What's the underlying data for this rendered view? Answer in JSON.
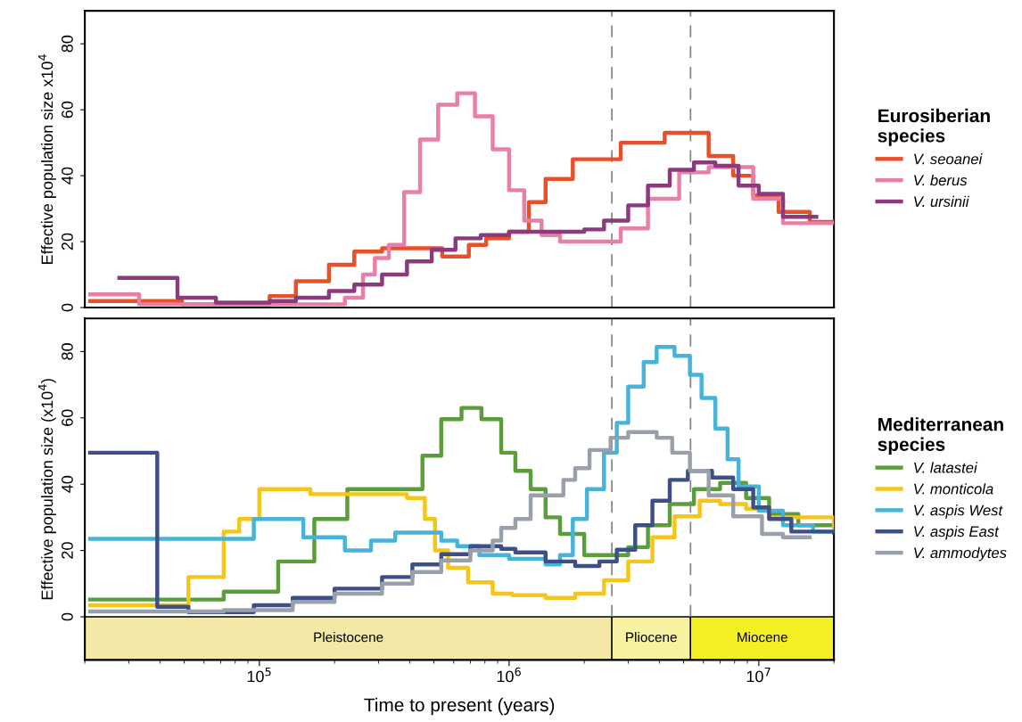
{
  "chart_data": [
    {
      "type": "step",
      "ylabel": "Effective population size x10$^{4}$",
      "legend_title": "Eurosiberian species",
      "legend": "right",
      "tick_labels": "y",
      "log": "x",
      "xlim": [
        20000,
        20000000
      ],
      "ylim": [
        0,
        90
      ],
      "yticks": [
        0,
        20,
        40,
        60,
        80
      ],
      "ref_lines": [
        {
          "axis": "x",
          "value": 2580000,
          "label": null,
          "color": "#808080",
          "line_style": "dashed"
        },
        {
          "axis": "x",
          "value": 5330000,
          "label": null,
          "color": "#808080",
          "line_style": "dashed"
        }
      ],
      "series": [
        {
          "name": "V. seoanei",
          "color": "#e8502a",
          "x": [
            21000,
            49000,
            110000,
            140000,
            190000,
            240000,
            310000,
            390000,
            540000,
            690000,
            810000,
            1000000,
            1200000,
            1400000,
            1800000,
            2800000,
            4200000,
            5200000,
            6300000,
            7900000,
            9500000,
            12000000,
            16000000,
            20000000
          ],
          "values": [
            2,
            1,
            3.5,
            8,
            13,
            17,
            18,
            18,
            15.5,
            19,
            21,
            23,
            32,
            39,
            45,
            50,
            53,
            53,
            46,
            40,
            34,
            29,
            26,
            26
          ]
        },
        {
          "name": "V. berus",
          "color": "#e87fa8",
          "x": [
            21000,
            33000,
            220000,
            260000,
            290000,
            330000,
            380000,
            440000,
            520000,
            620000,
            730000,
            860000,
            1000000,
            1150000,
            1350000,
            1600000,
            2000000,
            2800000,
            3600000,
            4800000,
            6300000,
            9500000,
            12500000,
            20000000
          ],
          "values": [
            4,
            1,
            3,
            10,
            15,
            19,
            35,
            51,
            61.5,
            65,
            58,
            48,
            35.6,
            26.4,
            22,
            20,
            20,
            24,
            33,
            41,
            42.6,
            33,
            25.6,
            25.6
          ]
        },
        {
          "name": "V. ursinii",
          "color": "#8b3a7e",
          "x": [
            27500,
            47000,
            67000,
            110000,
            140000,
            190000,
            240000,
            310000,
            390000,
            490000,
            610000,
            770000,
            1000000,
            2000000,
            2400000,
            3000000,
            3600000,
            4400000,
            5500000,
            6700000,
            8300000,
            10000000,
            12500000,
            17000000
          ],
          "values": [
            9,
            3,
            1.5,
            2,
            3,
            5,
            7,
            10,
            14,
            17.5,
            21,
            22,
            23,
            23.7,
            26.4,
            31,
            37,
            41.8,
            44,
            43,
            37,
            34.5,
            27.5,
            27.5
          ]
        }
      ]
    },
    {
      "type": "step",
      "ylabel": "Effective population size (x10$^{4}$)",
      "xlabel": "Time to present (years)",
      "legend_title": "Mediterranean species",
      "legend": "right",
      "log": "x",
      "xlim": [
        20000,
        20000000
      ],
      "ylim": [
        -13,
        90
      ],
      "yticks": [
        0,
        20,
        40,
        60,
        80
      ],
      "xticks": [
        {
          "value": 100000,
          "label": "10$^{5}$"
        },
        {
          "value": 1000000,
          "label": "10$^{6}$"
        },
        {
          "value": 10000000,
          "label": "10$^{7}$"
        }
      ],
      "ref_lines": [
        {
          "axis": "x",
          "value": 2580000,
          "label": null,
          "color": "#808080",
          "line_style": "dashed"
        },
        {
          "axis": "x",
          "value": 5330000,
          "label": null,
          "color": "#808080",
          "line_style": "dashed"
        }
      ],
      "bands": [
        {
          "axis": "x",
          "from": 20000,
          "to": 2580000,
          "label": "Pleistocene",
          "color": "#f3e8a6"
        },
        {
          "axis": "x",
          "from": 2580000,
          "to": 5330000,
          "label": "Pliocene",
          "color": "#f6f2a0"
        },
        {
          "axis": "x",
          "from": 5330000,
          "to": 20000000,
          "label": "Miocene",
          "color": "#f4f024"
        }
      ],
      "series": [
        {
          "name": "V. latastei",
          "color": "#5a9e3a",
          "x": [
            21000,
            72000,
            119000,
            166000,
            225000,
            450000,
            535000,
            645000,
            775000,
            930000,
            1060000,
            1220000,
            1400000,
            1600000,
            2000000,
            3000000,
            3600000,
            4400000,
            5500000,
            7000000,
            8900000,
            11000000,
            14400000,
            20000000
          ],
          "values": [
            5.2,
            7.6,
            16.7,
            29.5,
            38.5,
            48.6,
            59.6,
            63,
            59.6,
            49.5,
            44,
            38.5,
            30,
            25,
            18.6,
            21,
            27.6,
            34,
            38.5,
            40.4,
            35.8,
            31,
            27.6,
            25.7
          ]
        },
        {
          "name": "V. monticola",
          "color": "#f5c518",
          "x": [
            21000,
            52000,
            72000,
            83000,
            100000,
            160000,
            390000,
            460000,
            505000,
            570000,
            685000,
            860000,
            1030000,
            1400000,
            1840000,
            2400000,
            3000000,
            3750000,
            4600000,
            5800000,
            7000000,
            8900000,
            11000000,
            20000000
          ],
          "values": [
            3.5,
            12,
            25.7,
            29.5,
            38.5,
            37,
            35.8,
            29.5,
            20,
            14.8,
            10.4,
            7,
            6.5,
            5.7,
            7,
            11,
            16.7,
            24,
            30.3,
            35,
            34,
            32.5,
            30,
            26
          ]
        },
        {
          "name": "V. aspis West",
          "color": "#45b4d8",
          "x": [
            21000,
            95000,
            150000,
            220000,
            280000,
            350000,
            535000,
            620000,
            760000,
            1000000,
            1400000,
            1600000,
            1800000,
            2050000,
            2400000,
            2700000,
            3000000,
            3460000,
            3900000,
            4600000,
            5300000,
            5900000,
            6700000,
            7500000,
            8300000,
            10000000,
            12500000,
            16500000,
            20000000
          ],
          "values": [
            23.5,
            29.5,
            24,
            20,
            23,
            25.4,
            23,
            21.3,
            18.6,
            17.5,
            15.8,
            18.6,
            29.5,
            38.5,
            49.5,
            58.5,
            69.4,
            76.8,
            81.4,
            78.7,
            73,
            66,
            56.8,
            47.5,
            39.3,
            32,
            27.6,
            25.7,
            25.7
          ]
        },
        {
          "name": "V. aspis East",
          "color": "#3d4f86",
          "x": [
            21000,
            39000,
            52000,
            95000,
            136000,
            200000,
            310000,
            410000,
            535000,
            700000,
            930000,
            1060000,
            1400000,
            1840000,
            2300000,
            2700000,
            3200000,
            3750000,
            4400000,
            5200000,
            6500000,
            7900000,
            9500000,
            11000000,
            13500000,
            20000000
          ],
          "values": [
            49.5,
            3,
            1.4,
            3.5,
            5.7,
            8.5,
            12,
            15.8,
            18.9,
            21.3,
            20.5,
            19.4,
            16.7,
            15.3,
            16.7,
            20.2,
            27.6,
            35,
            41.3,
            44,
            42,
            38.5,
            33,
            29.5,
            25.7,
            25.4
          ]
        },
        {
          "name": "V. ammodytes",
          "color": "#9aa0ab",
          "x": [
            21000,
            72000,
            136000,
            200000,
            310000,
            410000,
            535000,
            700000,
            860000,
            930000,
            1060000,
            1220000,
            1650000,
            1840000,
            2100000,
            2550000,
            3000000,
            3900000,
            4500000,
            5300000,
            6300000,
            7900000,
            10300000,
            12500000,
            16000000
          ],
          "values": [
            1.6,
            2,
            4.5,
            7,
            10,
            13.5,
            17,
            20,
            23,
            26.8,
            29.5,
            36.6,
            41.3,
            44.8,
            50.3,
            54,
            55.7,
            54,
            49.5,
            44,
            36.6,
            30.3,
            25,
            24,
            24
          ]
        }
      ]
    }
  ]
}
